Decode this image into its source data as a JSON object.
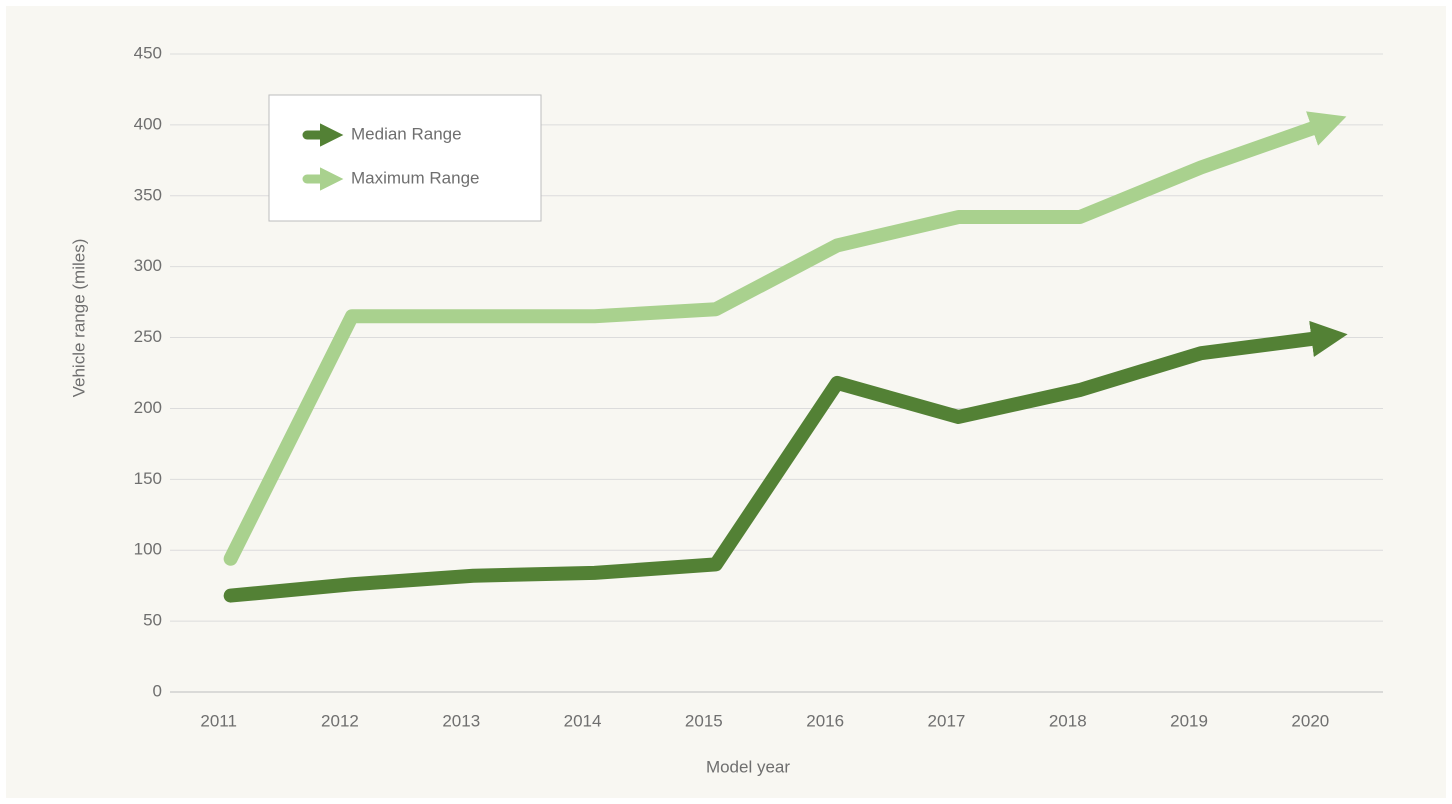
{
  "chart_data": {
    "type": "line",
    "x_label": "Model year",
    "y_label": "Vehicle range (miles)",
    "categories": [
      "2011",
      "2012",
      "2013",
      "2014",
      "2015",
      "2016",
      "2017",
      "2018",
      "2019",
      "2020"
    ],
    "series": [
      {
        "name": "Median Range",
        "color": "#538135",
        "values": [
          68,
          76,
          82,
          84,
          90,
          218,
          194,
          213,
          239,
          250
        ]
      },
      {
        "name": "Maximum Range",
        "color": "#a9d18e",
        "values": [
          94,
          265,
          265,
          265,
          270,
          315,
          335,
          335,
          370,
          400
        ]
      }
    ],
    "ylim": [
      0,
      450
    ],
    "yticks": [
      0,
      50,
      100,
      150,
      200,
      250,
      300,
      350,
      400,
      450
    ],
    "grid": true,
    "legend": "upper left"
  }
}
